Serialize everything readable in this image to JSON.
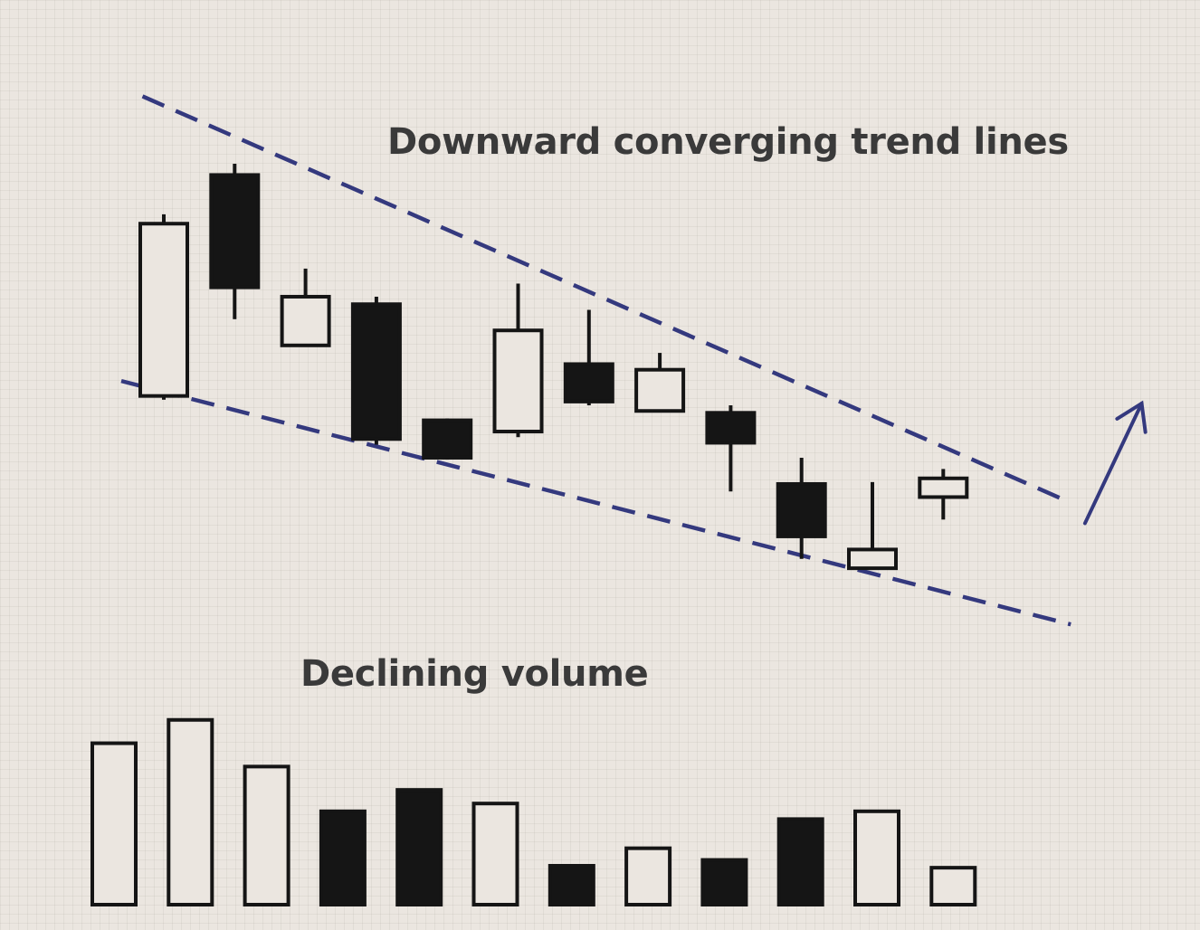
{
  "chart_data": [
    {
      "type": "candlestick",
      "title": "Downward converging trend lines",
      "pattern": "falling wedge",
      "ylim": [
        0,
        100
      ],
      "grid": true,
      "candles": [
        {
          "direction": "up",
          "open": 38.0,
          "close": 84.0,
          "high": 86.5,
          "low": 37.0
        },
        {
          "direction": "down",
          "open": 97.0,
          "close": 67.0,
          "high": 100.0,
          "low": 58.5
        },
        {
          "direction": "up",
          "open": 51.5,
          "close": 64.5,
          "high": 72.0,
          "low": 51.5
        },
        {
          "direction": "down",
          "open": 62.5,
          "close": 26.5,
          "high": 64.5,
          "low": 25.0
        },
        {
          "direction": "down",
          "open": 31.5,
          "close": 21.5,
          "high": 32.0,
          "low": 21.0
        },
        {
          "direction": "up",
          "open": 28.5,
          "close": 55.5,
          "high": 68.0,
          "low": 27.0
        },
        {
          "direction": "down",
          "open": 46.5,
          "close": 36.5,
          "high": 61.0,
          "low": 35.5
        },
        {
          "direction": "up",
          "open": 34.0,
          "close": 45.0,
          "high": 49.5,
          "low": 34.0
        },
        {
          "direction": "down",
          "open": 33.5,
          "close": 25.5,
          "high": 35.5,
          "low": 12.5
        },
        {
          "direction": "down",
          "open": 14.5,
          "close": 0.5,
          "high": 21.5,
          "low": -5.5
        },
        {
          "direction": "up",
          "open": -8.0,
          "close": -3.0,
          "high": 15.0,
          "low": -8.0
        },
        {
          "direction": "up",
          "open": 11.0,
          "close": 16.0,
          "high": 18.5,
          "low": 5.0
        }
      ],
      "trendlines": [
        {
          "role": "upper",
          "from": [
            -0.3,
            118.0
          ],
          "to": [
            12.8,
            9.5
          ],
          "style": "dashed"
        },
        {
          "role": "lower",
          "from": [
            -0.6,
            42.0
          ],
          "to": [
            12.8,
            -23.0
          ],
          "style": "dashed"
        }
      ],
      "breakout_arrow": {
        "from": [
          13.0,
          4.0
        ],
        "to": [
          13.8,
          36.0
        ]
      },
      "colors": {
        "trendline": "#34397e",
        "candle_filled": "#151515",
        "candle_outline": "#151515",
        "candle_hollow": "#ebe6e0",
        "background": "#ebe6e0",
        "text": "#3a3a3a"
      }
    },
    {
      "type": "bar",
      "title": "Declining volume",
      "values": [
        83,
        95,
        71,
        48,
        59,
        52,
        20,
        29,
        23,
        44,
        48,
        19
      ],
      "fill": [
        "hollow",
        "hollow",
        "hollow",
        "filled",
        "filled",
        "hollow",
        "filled",
        "hollow",
        "filled",
        "filled",
        "hollow",
        "hollow"
      ],
      "ylim": [
        0,
        100
      ]
    }
  ]
}
